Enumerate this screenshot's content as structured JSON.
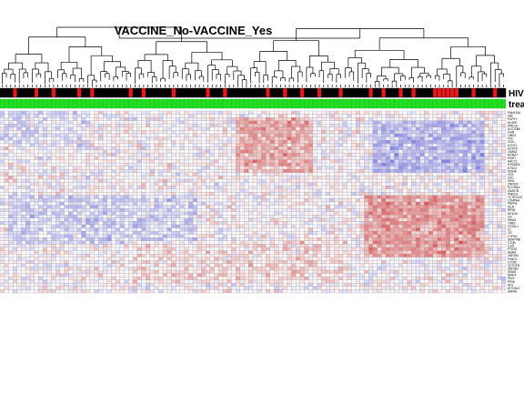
{
  "chart_data": {
    "type": "heatmap",
    "title": "VACCINE_No-VACCINE_Yes",
    "annotation_tracks": [
      {
        "label": "HIV",
        "colors": {
          "negative": "#000000",
          "positive": "#e8191b"
        }
      },
      {
        "label": "trea",
        "color": "#22dd22"
      }
    ],
    "n_samples": 118,
    "genes": [
      "FAM129A",
      "XAF",
      "PCRYY",
      "HLADF",
      "PRKCD",
      "SLC22B6",
      "GSM",
      "LIMS1",
      "IFI5",
      "OG5",
      "KCNT1",
      "HCNY5",
      "LMAN1",
      "MYRA7",
      "NTATI",
      "NACC1",
      "NTMARA",
      "NT5C2",
      "IGSH8",
      "CD3",
      "CSC",
      "GIN1",
      "ZNF630",
      "SLC26A2",
      "ZNA57B",
      "PNKDG",
      "TCTEX1D2",
      "LOMPAA",
      "PRPF8",
      "ISLN",
      "RPS6",
      "MYD16",
      "IL8",
      "HMAS",
      "THBS",
      "COL5L1",
      "V1",
      "CR",
      "CYP4A",
      "SERPINB",
      "C1QB",
      "ILSO",
      "PTGS2",
      "ADAM",
      "ZNF263",
      "FANCC",
      "LYCR2",
      "CD7CEN",
      "ZNF580",
      "SMU8",
      "IRAK4",
      "PA24",
      "PP5A",
      "ATS",
      "ATG16L2",
      "UBR4K"
    ],
    "colors": {
      "low": "#4848e0",
      "mid": "#ffffff",
      "high": "#d42020"
    },
    "value_range": [
      -3,
      3
    ]
  }
}
